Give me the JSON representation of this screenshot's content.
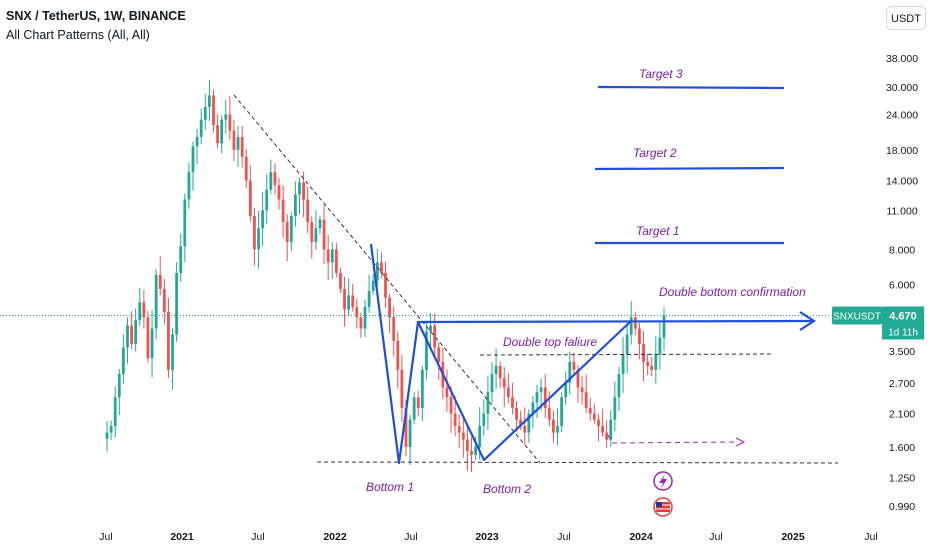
{
  "header": {
    "title": "SNX / TetherUS, 1W, BINANCE",
    "indicator": "All Chart Patterns (All, All)",
    "currency_button": "USDT"
  },
  "colors": {
    "up": "#26a69a",
    "down": "#ef5350",
    "pattern": "#1f4fd6",
    "annotation": "#7b1fa2",
    "price_badge": "#22ab94"
  },
  "chart_data": {
    "type": "candlestick",
    "symbol": "SNXUSDT",
    "y_scale": "log",
    "y_ticks": [
      "38.000",
      "30.000",
      "24.000",
      "18.000",
      "14.000",
      "11.000",
      "8.000",
      "6.000",
      "3.500",
      "2.700",
      "2.100",
      "1.600",
      "1.250",
      "0.990"
    ],
    "y_tick_values": [
      38,
      30,
      24,
      18,
      14,
      11,
      8,
      6,
      3.5,
      2.7,
      2.1,
      1.6,
      1.25,
      0.99
    ],
    "x_ticks": [
      {
        "label": "Jul",
        "bold": false
      },
      {
        "label": "2021",
        "bold": true
      },
      {
        "label": "Jul",
        "bold": false
      },
      {
        "label": "2022",
        "bold": true
      },
      {
        "label": "Jul",
        "bold": false
      },
      {
        "label": "2023",
        "bold": true
      },
      {
        "label": "Jul",
        "bold": false
      },
      {
        "label": "2024",
        "bold": true
      },
      {
        "label": "Jul",
        "bold": false
      },
      {
        "label": "2025",
        "bold": true
      },
      {
        "label": "Jul",
        "bold": false
      }
    ],
    "current_price": {
      "label": "SNXUSDT",
      "value": "4.670",
      "countdown": "1d 11h"
    },
    "annotations": [
      {
        "text": "Target 3",
        "price": 30
      },
      {
        "text": "Target 2",
        "price": 15.8
      },
      {
        "text": "Target 1",
        "price": 8.6
      },
      {
        "text": "Double bottom confirmation",
        "price": 5.2
      },
      {
        "text": "Double top faliure",
        "price": 3.9
      },
      {
        "text": "Bottom  1",
        "price": 1.2
      },
      {
        "text": "Bottom 2",
        "price": 1.18
      }
    ],
    "levels": [
      {
        "name": "neckline",
        "price": 4.55
      },
      {
        "name": "target-3",
        "price": 29.5
      },
      {
        "name": "target-2",
        "price": 15.5
      },
      {
        "name": "target-1",
        "price": 8.5
      },
      {
        "name": "support",
        "price": 1.43
      },
      {
        "name": "resistance",
        "price": 3.35
      }
    ],
    "ohlc_path": [
      1.8,
      1.9,
      2.4,
      2.9,
      3.6,
      4.3,
      3.7,
      4.5,
      5.2,
      4.6,
      3.3,
      4.2,
      6.5,
      5.8,
      4.8,
      3.0,
      4.0,
      6.6,
      8.2,
      12.0,
      15.0,
      18.5,
      20.0,
      23.0,
      25.5,
      28.0,
      22.0,
      19.0,
      23.0,
      24.0,
      21.0,
      18.0,
      20.0,
      17.0,
      14.0,
      10.5,
      8.0,
      9.5,
      11.0,
      13.0,
      15.0,
      13.5,
      12.0,
      10.0,
      8.5,
      10.5,
      12.5,
      13.8,
      12.0,
      10.0,
      8.5,
      9.5,
      10.2,
      8.0,
      7.2,
      8.0,
      6.6,
      5.8,
      4.9,
      5.5,
      5.0,
      4.6,
      4.2,
      5.0,
      5.7,
      6.2,
      7.2,
      6.6,
      5.4,
      4.6,
      3.8,
      3.0,
      2.2,
      1.6,
      2.0,
      2.4,
      2.2,
      3.0,
      4.1,
      4.3,
      3.6,
      3.2,
      2.6,
      2.4,
      2.1,
      1.9,
      1.8,
      1.7,
      1.55,
      1.5,
      1.6,
      1.9,
      2.1,
      2.5,
      2.9,
      3.1,
      2.8,
      2.6,
      2.4,
      2.2,
      2.0,
      1.9,
      1.8,
      2.1,
      2.3,
      2.5,
      2.6,
      2.2,
      2.0,
      1.8,
      1.9,
      2.4,
      2.7,
      3.2,
      3.0,
      2.6,
      2.5,
      2.2,
      2.1,
      2.0,
      1.9,
      1.8,
      1.7,
      2.0,
      2.4,
      2.9,
      3.4,
      4.0,
      4.6,
      4.2,
      3.7,
      3.2,
      3.1,
      3.0,
      3.4,
      3.9,
      4.67
    ]
  }
}
